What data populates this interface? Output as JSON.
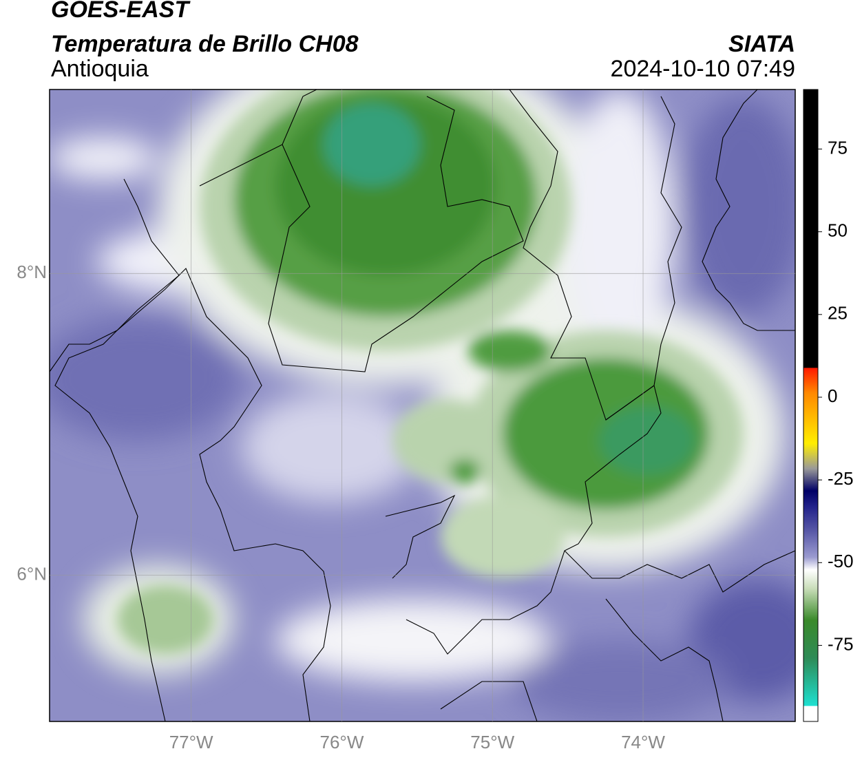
{
  "header": {
    "title": "GOES-EAST",
    "subtitle": "Temperatura de Brillo CH08",
    "region": "Antioquia",
    "source": "SIATA",
    "datetime": "2024-10-10 07:49"
  },
  "map": {
    "lon_range": [
      -77.94,
      -72.99
    ],
    "lat_range": [
      5.03,
      9.22
    ],
    "lon_ticks": [
      {
        "value": -77,
        "label": "77°W"
      },
      {
        "value": -76,
        "label": "76°W"
      },
      {
        "value": -75,
        "label": "75°W"
      },
      {
        "value": -74,
        "label": "74°W"
      }
    ],
    "lat_ticks": [
      {
        "value": 6,
        "label": "6°N"
      },
      {
        "value": 8,
        "label": "8°N"
      }
    ]
  },
  "colorbar": {
    "range": [
      -98,
      93
    ],
    "ticks": [
      -75,
      -50,
      -25,
      0,
      25,
      50,
      75
    ]
  }
}
